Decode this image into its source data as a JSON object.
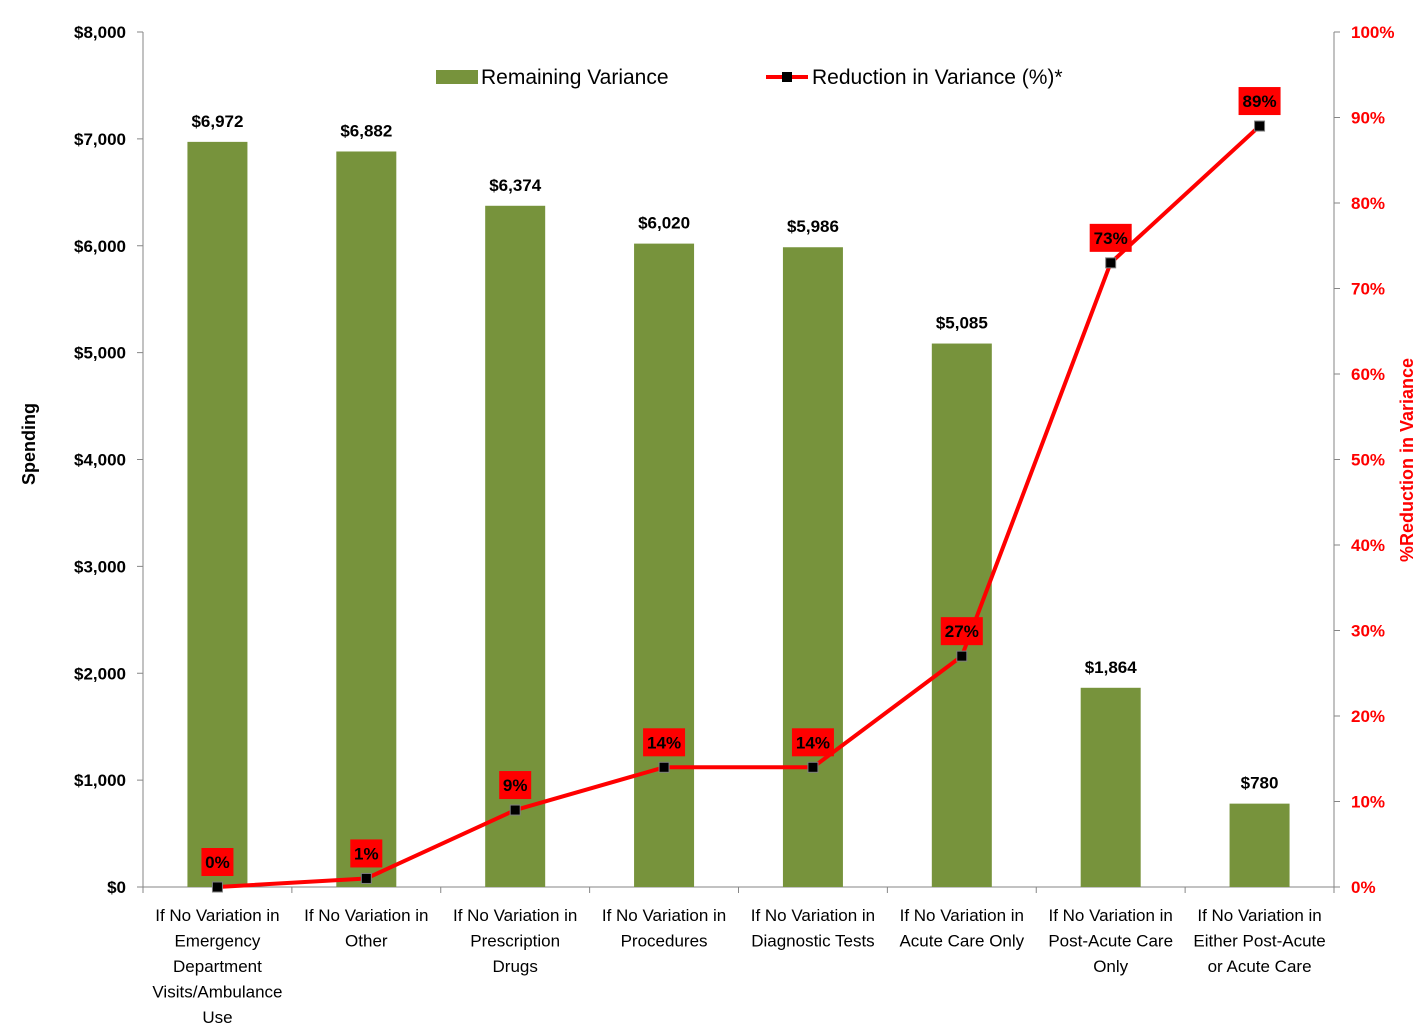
{
  "chart_data": {
    "type": "bar",
    "categories": [
      [
        "If No Variation in",
        "Emergency",
        "Department",
        "Visits/Ambulance",
        "Use"
      ],
      [
        "If No Variation in",
        "Other"
      ],
      [
        "If No Variation in",
        "Prescription",
        "Drugs"
      ],
      [
        "If No Variation in",
        "Procedures"
      ],
      [
        "If No Variation in",
        "Diagnostic Tests"
      ],
      [
        "If No Variation in",
        "Acute Care Only"
      ],
      [
        "If No Variation in",
        "Post-Acute Care",
        "Only"
      ],
      [
        "If No Variation in",
        "Either Post-Acute",
        "or Acute Care"
      ]
    ],
    "series": [
      {
        "name": "Remaining Variance",
        "type": "bar",
        "axis": "left",
        "color": "#77933c",
        "values": [
          6972,
          6882,
          6374,
          6020,
          5986,
          5085,
          1864,
          780
        ],
        "labels": [
          "$6,972",
          "$6,882",
          "$6,374",
          "$6,020",
          "$5,986",
          "$5,085",
          "$1,864",
          "$780"
        ]
      },
      {
        "name": "Reduction in Variance (%)*",
        "type": "line",
        "axis": "right",
        "color": "#ff0000",
        "marker_color": "#000000",
        "values": [
          0,
          1,
          9,
          14,
          14,
          27,
          73,
          89
        ],
        "labels": [
          "0%",
          "1%",
          "9%",
          "14%",
          "14%",
          "27%",
          "73%",
          "89%"
        ]
      }
    ],
    "y_left": {
      "label": "Spending",
      "ylim": [
        0,
        8000
      ],
      "ticks": [
        "$0",
        "$1,000",
        "$2,000",
        "$3,000",
        "$4,000",
        "$5,000",
        "$6,000",
        "$7,000",
        "$8,000"
      ]
    },
    "y_right": {
      "label": "%Reduction in  Variance",
      "ylim": [
        0,
        100
      ],
      "ticks": [
        "0%",
        "10%",
        "20%",
        "30%",
        "40%",
        "50%",
        "60%",
        "70%",
        "80%",
        "90%",
        "100%"
      ]
    },
    "xlabel": "",
    "title": "",
    "grid": false,
    "legend_position": "top-center"
  }
}
